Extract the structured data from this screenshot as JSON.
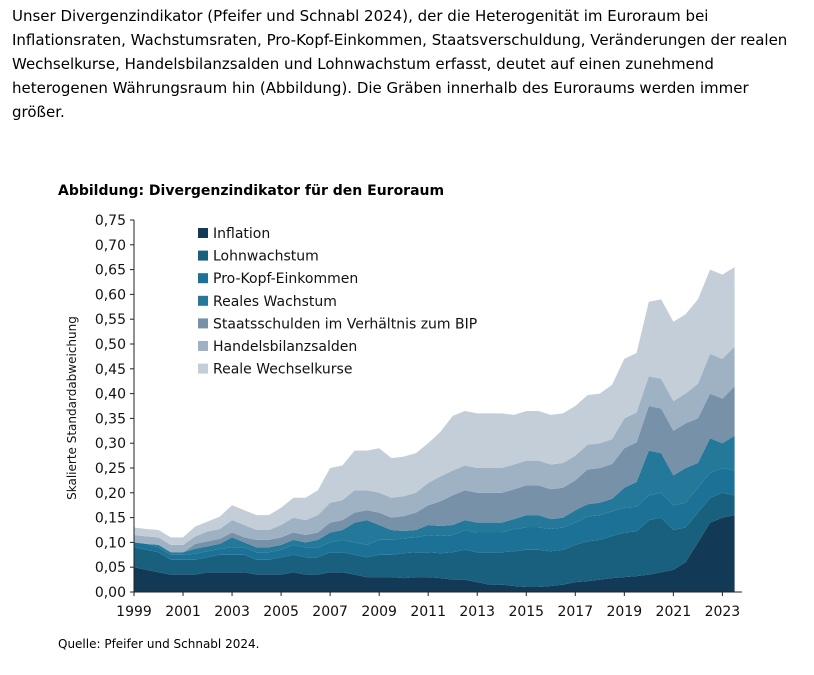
{
  "intro_text": "Unser Divergenzindikator (Pfeifer und Schnabl 2024), der die Heterogenität im Euroraum bei Inflationsraten, Wachstumsraten, Pro-Kopf-Einkommen, Staatsverschuldung, Veränderungen der realen Wechselkurse, Handelsbilanzsalden und Lohnwachstum erfasst, deutet auf einen zunehmend heterogenen Währungsraum hin (Abbildung). Die Gräben innerhalb des Euroraums werden immer größer.",
  "figure_title": "Abbildung: Divergenzindikator für den Euroraum",
  "source": "Quelle: Pfeifer und Schnabl 2024.",
  "chart_data": {
    "type": "area",
    "stacked": true,
    "title": "Abbildung: Divergenzindikator für den Euroraum",
    "xlabel": "",
    "ylabel": "Skalierte Standardabweichung",
    "xlim": [
      1999,
      2023.8
    ],
    "ylim": [
      0,
      0.75
    ],
    "x_ticks": [
      "1999",
      "2001",
      "2003",
      "2005",
      "2007",
      "2009",
      "2011",
      "2013",
      "2015",
      "2017",
      "2019",
      "2021",
      "2023"
    ],
    "y_ticks": [
      "0,00",
      "0,05",
      "0,10",
      "0,15",
      "0,20",
      "0,25",
      "0,30",
      "0,35",
      "0,40",
      "0,45",
      "0,50",
      "0,55",
      "0,60",
      "0,65",
      "0,70",
      "0,75"
    ],
    "legend_position": "top-left",
    "grid": false,
    "x": [
      1999,
      1999.5,
      2000,
      2000.5,
      2001,
      2001.5,
      2002,
      2002.5,
      2003,
      2003.5,
      2004,
      2004.5,
      2005,
      2005.5,
      2006,
      2006.5,
      2007,
      2007.5,
      2008,
      2008.5,
      2009,
      2009.5,
      2010,
      2010.5,
      2011,
      2011.5,
      2012,
      2012.5,
      2013,
      2013.5,
      2014,
      2014.5,
      2015,
      2015.5,
      2016,
      2016.5,
      2017,
      2017.5,
      2018,
      2018.5,
      2019,
      2019.5,
      2020,
      2020.5,
      2021,
      2021.5,
      2022,
      2022.5,
      2023,
      2023.5
    ],
    "series": [
      {
        "name": "Inflation",
        "color": "#123a57",
        "values": [
          0.05,
          0.045,
          0.04,
          0.035,
          0.035,
          0.035,
          0.04,
          0.04,
          0.04,
          0.04,
          0.035,
          0.035,
          0.035,
          0.04,
          0.035,
          0.035,
          0.04,
          0.04,
          0.035,
          0.03,
          0.03,
          0.03,
          0.028,
          0.03,
          0.03,
          0.028,
          0.025,
          0.025,
          0.02,
          0.015,
          0.015,
          0.012,
          0.01,
          0.01,
          0.012,
          0.015,
          0.02,
          0.022,
          0.025,
          0.028,
          0.03,
          0.032,
          0.035,
          0.04,
          0.045,
          0.06,
          0.1,
          0.14,
          0.15,
          0.155
        ]
      },
      {
        "name": "Lohnwachstum",
        "color": "#18607e",
        "values": [
          0.04,
          0.04,
          0.04,
          0.03,
          0.03,
          0.03,
          0.03,
          0.035,
          0.035,
          0.035,
          0.03,
          0.03,
          0.035,
          0.035,
          0.035,
          0.035,
          0.04,
          0.04,
          0.04,
          0.04,
          0.045,
          0.045,
          0.05,
          0.05,
          0.05,
          0.05,
          0.055,
          0.06,
          0.06,
          0.065,
          0.065,
          0.07,
          0.075,
          0.075,
          0.07,
          0.07,
          0.075,
          0.08,
          0.08,
          0.085,
          0.09,
          0.09,
          0.11,
          0.11,
          0.08,
          0.07,
          0.06,
          0.05,
          0.05,
          0.04
        ]
      },
      {
        "name": "Pro-Kopf-Einkommen",
        "color": "#1c7196",
        "values": [
          0.01,
          0.012,
          0.01,
          0.01,
          0.01,
          0.012,
          0.012,
          0.012,
          0.015,
          0.015,
          0.015,
          0.015,
          0.015,
          0.02,
          0.02,
          0.02,
          0.02,
          0.025,
          0.025,
          0.025,
          0.03,
          0.03,
          0.03,
          0.03,
          0.035,
          0.035,
          0.035,
          0.04,
          0.04,
          0.04,
          0.04,
          0.045,
          0.045,
          0.045,
          0.045,
          0.045,
          0.045,
          0.05,
          0.05,
          0.05,
          0.05,
          0.05,
          0.05,
          0.05,
          0.05,
          0.05,
          0.05,
          0.05,
          0.05,
          0.05
        ]
      },
      {
        "name": "Reales Wachstum",
        "color": "#24789a",
        "values": [
          0.0,
          0.0,
          0.005,
          0.005,
          0.005,
          0.01,
          0.01,
          0.01,
          0.02,
          0.01,
          0.01,
          0.01,
          0.01,
          0.01,
          0.01,
          0.015,
          0.02,
          0.02,
          0.04,
          0.05,
          0.03,
          0.02,
          0.015,
          0.015,
          0.02,
          0.02,
          0.02,
          0.02,
          0.02,
          0.02,
          0.02,
          0.02,
          0.025,
          0.025,
          0.02,
          0.02,
          0.025,
          0.025,
          0.025,
          0.025,
          0.04,
          0.05,
          0.09,
          0.08,
          0.06,
          0.07,
          0.05,
          0.07,
          0.05,
          0.07
        ]
      },
      {
        "name": "Staatsschulden im Verhältnis zum BIP",
        "color": "#7691a8",
        "values": [
          0.0,
          0.0,
          0.0,
          0.0,
          0.0,
          0.01,
          0.01,
          0.01,
          0.01,
          0.01,
          0.015,
          0.015,
          0.015,
          0.015,
          0.015,
          0.015,
          0.02,
          0.02,
          0.02,
          0.02,
          0.025,
          0.025,
          0.03,
          0.035,
          0.04,
          0.05,
          0.06,
          0.06,
          0.06,
          0.06,
          0.06,
          0.06,
          0.06,
          0.06,
          0.06,
          0.06,
          0.06,
          0.07,
          0.07,
          0.07,
          0.08,
          0.08,
          0.09,
          0.09,
          0.09,
          0.09,
          0.09,
          0.09,
          0.09,
          0.1
        ]
      },
      {
        "name": "Handelsbilanzsalden",
        "color": "#9fb2c4",
        "values": [
          0.015,
          0.015,
          0.015,
          0.015,
          0.015,
          0.015,
          0.02,
          0.02,
          0.025,
          0.025,
          0.02,
          0.02,
          0.025,
          0.03,
          0.03,
          0.035,
          0.04,
          0.04,
          0.045,
          0.04,
          0.04,
          0.04,
          0.04,
          0.04,
          0.045,
          0.05,
          0.05,
          0.05,
          0.05,
          0.05,
          0.05,
          0.05,
          0.05,
          0.05,
          0.05,
          0.05,
          0.05,
          0.05,
          0.05,
          0.05,
          0.06,
          0.06,
          0.06,
          0.06,
          0.06,
          0.06,
          0.07,
          0.08,
          0.08,
          0.08
        ]
      },
      {
        "name": "Reale Wechselkurse",
        "color": "#c3ced8",
        "values": [
          0.015,
          0.015,
          0.015,
          0.015,
          0.015,
          0.02,
          0.02,
          0.025,
          0.03,
          0.03,
          0.03,
          0.03,
          0.035,
          0.04,
          0.045,
          0.05,
          0.07,
          0.07,
          0.08,
          0.08,
          0.09,
          0.08,
          0.08,
          0.08,
          0.08,
          0.09,
          0.11,
          0.11,
          0.11,
          0.11,
          0.11,
          0.1,
          0.1,
          0.1,
          0.1,
          0.1,
          0.1,
          0.1,
          0.1,
          0.11,
          0.12,
          0.12,
          0.15,
          0.16,
          0.16,
          0.16,
          0.17,
          0.17,
          0.17,
          0.16
        ]
      }
    ]
  }
}
